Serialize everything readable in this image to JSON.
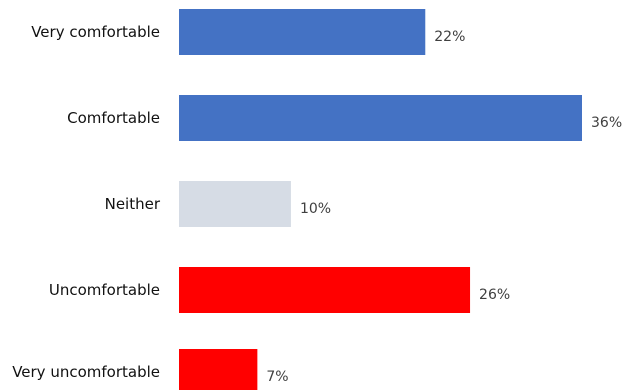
{
  "chart_data": {
    "type": "bar",
    "orientation": "horizontal",
    "categories": [
      "Very comfortable",
      "Comfortable",
      "Neither",
      "Uncomfortable",
      "Very uncomfortable"
    ],
    "values": [
      22,
      36,
      10,
      26,
      7
    ],
    "value_labels": [
      "22%",
      "36%",
      "10%",
      "26%",
      "7%"
    ],
    "bar_colors": [
      "#4472C4",
      "#4472C4",
      "#D6DCE5",
      "#FF0000",
      "#FF0000"
    ],
    "xlim": [
      0,
      36
    ],
    "title": "",
    "xlabel": "",
    "ylabel": "",
    "grid": false,
    "legend": "none"
  }
}
